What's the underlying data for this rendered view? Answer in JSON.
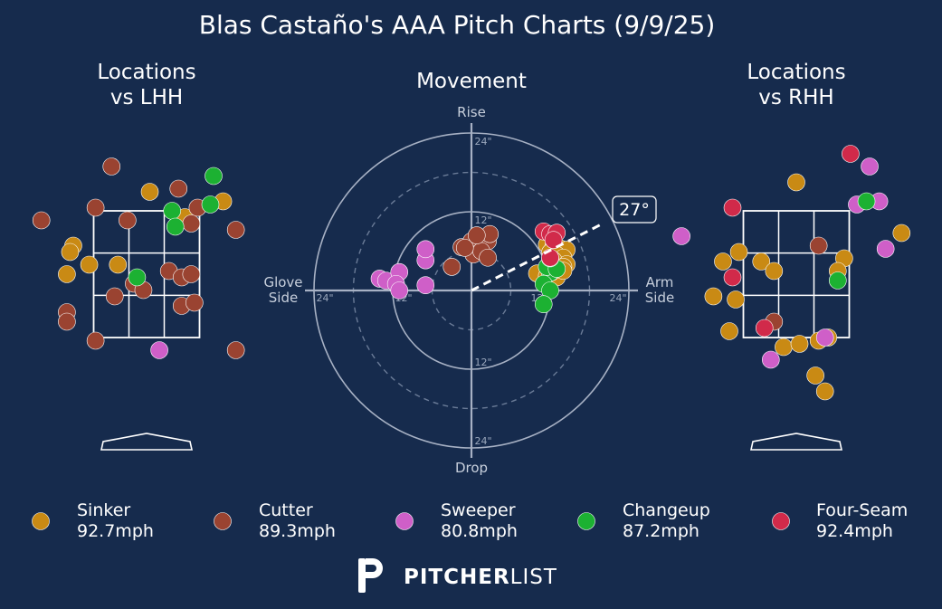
{
  "title": "Blas Castaño's AAA Pitch Charts (9/9/25)",
  "colors": {
    "background": "#162b4d",
    "Sinker": "#c98a14",
    "Cutter": "#9a4331",
    "Sweeper": "#cf5fc8",
    "Changeup": "#1cb132",
    "Four-Seam": "#d12a4a"
  },
  "panels": {
    "lhh_title": [
      "Locations",
      "vs LHH"
    ],
    "movement_title": "Movement",
    "rhh_title": [
      "Locations",
      "vs RHH"
    ]
  },
  "movement_axes": {
    "top": "Rise",
    "bottom": "Drop",
    "left": [
      "Glove",
      "Side"
    ],
    "right": [
      "Arm",
      "Side"
    ],
    "rings": [
      "12\"",
      "24\""
    ]
  },
  "arm_angle": "27°",
  "legend": [
    {
      "name": "Sinker",
      "velo": "92.7mph"
    },
    {
      "name": "Cutter",
      "velo": "89.3mph"
    },
    {
      "name": "Sweeper",
      "velo": "80.8mph"
    },
    {
      "name": "Changeup",
      "velo": "87.2mph"
    },
    {
      "name": "Four-Seam",
      "velo": "92.4mph"
    }
  ],
  "brand": {
    "bold": "PITCHER",
    "light": "LIST"
  },
  "chart_data": [
    {
      "type": "scatter",
      "panel": "locations_vs_lhh",
      "series": [
        {
          "name": "Sinker",
          "points": [
            [
              -1.25,
              2.5
            ],
            [
              -1.15,
              2.95
            ],
            [
              -0.9,
              2.65
            ],
            [
              -1.2,
              2.85
            ],
            [
              -0.45,
              2.65
            ],
            [
              0.05,
              3.8
            ],
            [
              0.6,
              3.4
            ],
            [
              1.2,
              3.65
            ]
          ]
        },
        {
          "name": "Cutter",
          "points": [
            [
              -0.55,
              4.2
            ],
            [
              -1.65,
              3.35
            ],
            [
              -0.8,
              3.55
            ],
            [
              -0.3,
              3.35
            ],
            [
              0.5,
              3.85
            ],
            [
              0.8,
              3.55
            ],
            [
              0.7,
              3.3
            ],
            [
              -0.2,
              2.35
            ],
            [
              0.35,
              2.55
            ],
            [
              0.55,
              2.45
            ],
            [
              0.7,
              2.5
            ],
            [
              -0.5,
              2.15
            ],
            [
              -0.05,
              2.25
            ],
            [
              0.55,
              2.0
            ],
            [
              0.75,
              2.05
            ],
            [
              -1.25,
              1.9
            ],
            [
              -1.25,
              1.75
            ],
            [
              -0.8,
              1.45
            ],
            [
              1.4,
              3.2
            ],
            [
              1.4,
              1.3
            ]
          ]
        },
        {
          "name": "Sweeper",
          "points": [
            [
              0.2,
              1.3
            ]
          ]
        },
        {
          "name": "Changeup",
          "points": [
            [
              1.05,
              4.05
            ],
            [
              0.4,
              3.5
            ],
            [
              1.0,
              3.6
            ],
            [
              0.45,
              3.25
            ],
            [
              -0.15,
              2.45
            ]
          ]
        }
      ]
    },
    {
      "type": "scatter",
      "panel": "movement",
      "x_unit": "inches",
      "y_unit": "inches",
      "rings": [
        12,
        24
      ],
      "arm_angle_deg": 27,
      "series": [
        {
          "name": "Sinker",
          "points": [
            [
              11.5,
              7.0
            ],
            [
              12.5,
              6.8
            ],
            [
              13.5,
              6.4
            ],
            [
              14.5,
              6.2
            ],
            [
              12.0,
              5.8
            ],
            [
              13.0,
              5.4
            ],
            [
              14.0,
              5.0
            ],
            [
              12.5,
              4.6
            ],
            [
              14.5,
              4.0
            ],
            [
              12.0,
              3.4
            ],
            [
              14.0,
              3.6
            ],
            [
              10.0,
              2.6
            ],
            [
              11.5,
              2.2
            ],
            [
              13.0,
              2.0
            ],
            [
              14.0,
              3.0
            ],
            [
              12.2,
              2.8
            ]
          ]
        },
        {
          "name": "Cutter",
          "points": [
            [
              -3.0,
              3.6
            ],
            [
              -1.5,
              6.6
            ],
            [
              0.0,
              7.5
            ],
            [
              1.3,
              7.0
            ],
            [
              2.5,
              7.5
            ],
            [
              2.8,
              8.6
            ],
            [
              0.3,
              5.5
            ],
            [
              1.5,
              6.0
            ],
            [
              2.5,
              5.0
            ],
            [
              -1.0,
              6.5
            ],
            [
              0.8,
              8.4
            ]
          ]
        },
        {
          "name": "Sweeper",
          "points": [
            [
              -14.0,
              1.8
            ],
            [
              -13.0,
              1.5
            ],
            [
              -11.0,
              2.8
            ],
            [
              -11.5,
              1.0
            ],
            [
              -7.0,
              0.8
            ],
            [
              -7.0,
              4.6
            ],
            [
              -7.0,
              6.3
            ],
            [
              -11.0,
              0.0
            ]
          ]
        },
        {
          "name": "Changeup",
          "points": [
            [
              12.0,
              2.7
            ],
            [
              11.5,
              3.6
            ],
            [
              13.0,
              3.3
            ],
            [
              11.0,
              1.0
            ],
            [
              12.0,
              0.0
            ],
            [
              11.0,
              -2.1
            ],
            [
              12.0,
              4.9
            ]
          ]
        },
        {
          "name": "Four-Seam",
          "points": [
            [
              11.0,
              9.0
            ],
            [
              12.0,
              8.6
            ],
            [
              13.0,
              8.8
            ],
            [
              12.5,
              7.7
            ],
            [
              12.0,
              5.0
            ]
          ]
        }
      ]
    },
    {
      "type": "scatter",
      "panel": "locations_vs_rhh",
      "series": [
        {
          "name": "Sinker",
          "points": [
            [
              -1.15,
              2.7
            ],
            [
              -0.9,
              2.85
            ],
            [
              -0.55,
              2.7
            ],
            [
              -0.35,
              2.55
            ],
            [
              -1.3,
              2.15
            ],
            [
              -0.95,
              2.1
            ],
            [
              -1.05,
              1.6
            ],
            [
              -0.2,
              1.35
            ],
            [
              0.05,
              1.4
            ],
            [
              0.35,
              1.45
            ],
            [
              0.5,
              1.5
            ],
            [
              0.3,
              0.9
            ],
            [
              0.45,
              0.65
            ],
            [
              0.0,
              3.95
            ],
            [
              0.75,
              2.75
            ],
            [
              0.65,
              2.55
            ],
            [
              1.65,
              3.15
            ]
          ]
        },
        {
          "name": "Cutter",
          "points": [
            [
              0.35,
              2.95
            ],
            [
              -0.35,
              1.75
            ]
          ]
        },
        {
          "name": "Sweeper",
          "points": [
            [
              1.15,
              4.2
            ],
            [
              0.95,
              3.6
            ],
            [
              1.3,
              3.65
            ],
            [
              1.4,
              2.9
            ],
            [
              -0.4,
              1.15
            ],
            [
              0.45,
              1.5
            ],
            [
              -1.8,
              3.1
            ]
          ]
        },
        {
          "name": "Changeup",
          "points": [
            [
              1.1,
              3.65
            ],
            [
              0.65,
              2.4
            ]
          ]
        },
        {
          "name": "Four-Seam",
          "points": [
            [
              0.85,
              4.4
            ],
            [
              -1.0,
              3.55
            ],
            [
              -1.0,
              2.45
            ],
            [
              -0.5,
              1.65
            ]
          ]
        }
      ]
    }
  ]
}
